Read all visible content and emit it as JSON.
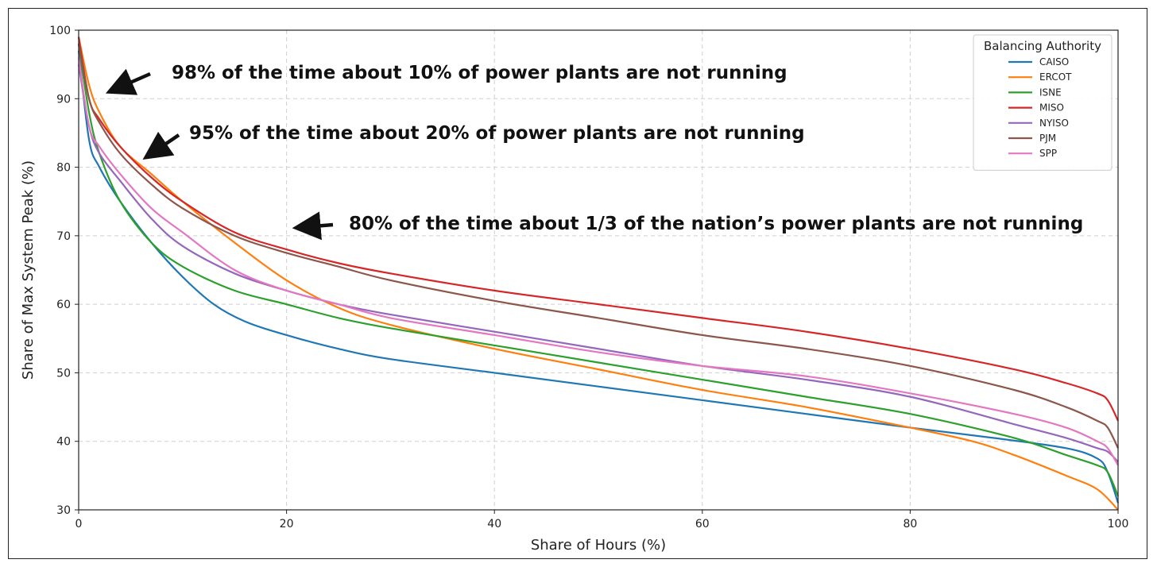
{
  "chart_data": {
    "type": "line",
    "title": "",
    "xlabel": "Share of Hours (%)",
    "ylabel": "Share of Max System Peak (%)",
    "xlim": [
      0,
      100
    ],
    "ylim": [
      30,
      100
    ],
    "xticks": [
      "0",
      "20",
      "40",
      "60",
      "80",
      "100"
    ],
    "yticks": [
      "30",
      "40",
      "50",
      "60",
      "70",
      "80",
      "90",
      "100"
    ],
    "grid": true,
    "legend": {
      "title": "Balancing Authority",
      "placement": "top-right"
    },
    "series": [
      {
        "name": "CAISO",
        "color": "#1f77b4",
        "x": [
          0,
          1,
          2,
          4,
          7,
          10,
          13,
          16,
          20,
          25,
          30,
          40,
          50,
          60,
          70,
          80,
          88,
          95,
          98,
          99,
          100
        ],
        "y": [
          97,
          84,
          80,
          75,
          69,
          64,
          60,
          57.5,
          55.5,
          53.5,
          52,
          50,
          48,
          46,
          44,
          42,
          40.5,
          39,
          37.5,
          35.5,
          31
        ]
      },
      {
        "name": "ERCOT",
        "color": "#ff7f0e",
        "x": [
          0,
          1,
          2,
          4,
          7,
          10,
          15,
          20,
          25,
          30,
          40,
          50,
          60,
          70,
          80,
          86,
          90,
          95,
          98,
          100
        ],
        "y": [
          99,
          92,
          88,
          83,
          79,
          75,
          69,
          63.5,
          59.5,
          57,
          53.5,
          50.5,
          47.5,
          45,
          42,
          40,
          38,
          35,
          33,
          30
        ]
      },
      {
        "name": "ISNE",
        "color": "#2ca02c",
        "x": [
          0,
          1,
          2,
          4,
          7,
          10,
          15,
          20,
          25,
          30,
          40,
          50,
          60,
          70,
          80,
          90,
          95,
          98,
          99,
          100
        ],
        "y": [
          98,
          88,
          82,
          75,
          69,
          65.5,
          62,
          60,
          58,
          56.5,
          54,
          51.5,
          49,
          46.5,
          44,
          40.5,
          38,
          36.5,
          35.5,
          32
        ]
      },
      {
        "name": "MISO",
        "color": "#d62728",
        "x": [
          0,
          1,
          2,
          4,
          7,
          10,
          15,
          20,
          25,
          30,
          40,
          50,
          60,
          70,
          80,
          90,
          95,
          98,
          99,
          100
        ],
        "y": [
          99,
          90,
          87,
          83,
          78.5,
          75,
          70.5,
          68,
          66,
          64.5,
          62,
          60,
          58,
          56,
          53.5,
          50.5,
          48.5,
          47,
          46,
          43
        ]
      },
      {
        "name": "NYISO",
        "color": "#9467bd",
        "x": [
          0,
          1,
          2,
          4,
          7,
          10,
          15,
          20,
          25,
          30,
          40,
          50,
          60,
          70,
          80,
          90,
          95,
          98,
          99,
          100
        ],
        "y": [
          95,
          86,
          82,
          78,
          72.5,
          68.5,
          64.5,
          62,
          60,
          58.5,
          56,
          53.5,
          51,
          49,
          46.5,
          42.5,
          40.5,
          39,
          38.5,
          37
        ]
      },
      {
        "name": "PJM",
        "color": "#8c564b",
        "x": [
          0,
          1,
          2,
          4,
          7,
          10,
          15,
          20,
          25,
          30,
          40,
          50,
          60,
          70,
          80,
          90,
          95,
          98,
          99,
          100
        ],
        "y": [
          98,
          90,
          86.5,
          82,
          77.5,
          74,
          70,
          67.5,
          65.5,
          63.5,
          60.5,
          58,
          55.5,
          53.5,
          51,
          47.5,
          45,
          43,
          42,
          39
        ]
      },
      {
        "name": "SPP",
        "color": "#e377c2",
        "x": [
          0,
          1,
          2,
          4,
          7,
          10,
          15,
          20,
          25,
          30,
          40,
          50,
          60,
          70,
          80,
          90,
          95,
          98,
          99,
          100
        ],
        "y": [
          96,
          86,
          83,
          79,
          74,
          70.5,
          65,
          62,
          60,
          58,
          55.5,
          53,
          51,
          49.5,
          47,
          44,
          42,
          40,
          39,
          36.5
        ]
      }
    ],
    "annotations": [
      {
        "text": "98% of the time about 10% of power plants are not running",
        "x": 2,
        "y": 90.5
      },
      {
        "text": "95% of the time about 20% of power plants are not running",
        "x": 5.5,
        "y": 81
      },
      {
        "text": "80% of the time about 1/3 of the nation’s power plants are not running",
        "x": 20,
        "y": 70.5
      }
    ]
  }
}
